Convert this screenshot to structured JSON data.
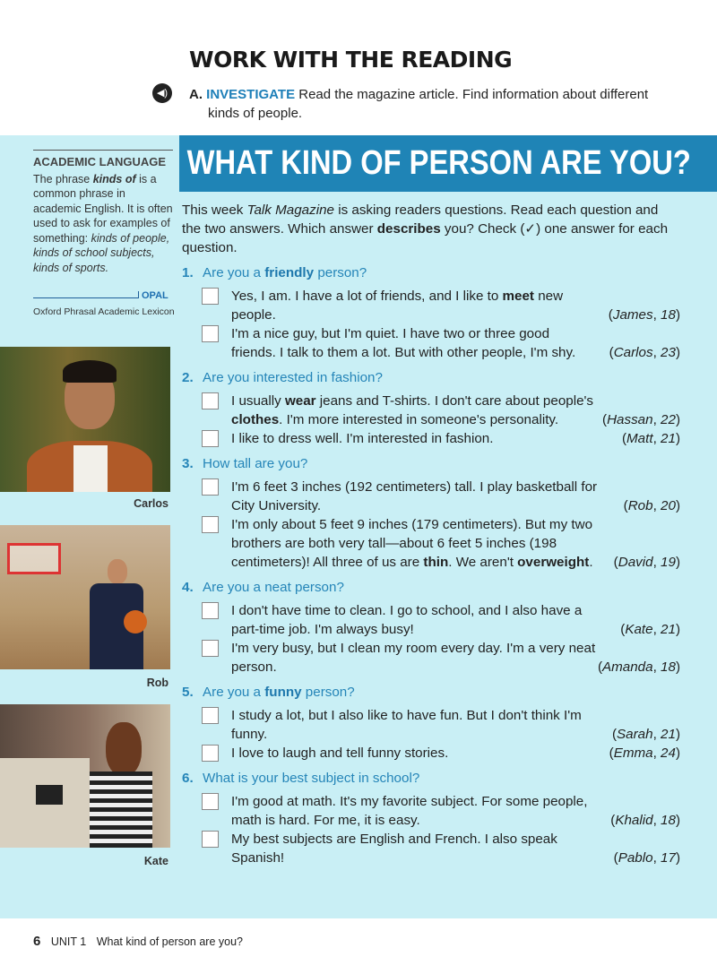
{
  "header": {
    "title": "WORK WITH THE READING",
    "audio_icon": "speaker-icon",
    "task_letter": "A.",
    "task_label": "INVESTIGATE",
    "task_text": "Read the magazine article. Find information about different",
    "task_text2": "kinds of people."
  },
  "sidebar": {
    "heading": "ACADEMIC LANGUAGE",
    "body": [
      {
        "t": "The phrase "
      },
      {
        "t": "kinds of",
        "i": true,
        "b": true
      },
      {
        "t": " is a common phrase in academic English. It is often used to ask for examples of something: "
      },
      {
        "t": "kinds of people, kinds of school subjects, kinds of sports.",
        "i": true
      }
    ],
    "opal_tag": "OPAL",
    "opal_full": "Oxford Phrasal Academic Lexicon",
    "photos": [
      {
        "caption": "Carlos"
      },
      {
        "caption": "Rob"
      },
      {
        "caption": "Kate"
      }
    ]
  },
  "article": {
    "title": "WHAT KIND OF PERSON ARE YOU?",
    "intro": [
      {
        "t": "This week "
      },
      {
        "t": "Talk Magazine",
        "i": true
      },
      {
        "t": " is asking readers questions. Read each question and the two answers. Which answer "
      },
      {
        "t": "describes",
        "b": true
      },
      {
        "t": " you? Check (✓) one answer for each question."
      }
    ],
    "questions": [
      {
        "num": "1.",
        "text": [
          {
            "t": "Are you a "
          },
          {
            "t": "friendly",
            "b": true
          },
          {
            "t": " person?"
          }
        ],
        "answers": [
          {
            "text": [
              {
                "t": "Yes, I am. I have a lot of friends, and I like to "
              },
              {
                "t": "meet",
                "b": true
              },
              {
                "t": " new people."
              }
            ],
            "name": "James",
            "age": "18"
          },
          {
            "text": [
              {
                "t": "I'm a nice guy, but I'm quiet. I have two or three good friends. I talk to them a lot. But with other people, I'm shy."
              }
            ],
            "name": "Carlos",
            "age": "23"
          }
        ]
      },
      {
        "num": "2.",
        "text": [
          {
            "t": "Are you interested in fashion?"
          }
        ],
        "answers": [
          {
            "text": [
              {
                "t": "I usually "
              },
              {
                "t": "wear",
                "b": true
              },
              {
                "t": " jeans and T-shirts. I don't care about people's "
              },
              {
                "t": "clothes",
                "b": true
              },
              {
                "t": ". I'm more interested in someone's personality."
              }
            ],
            "name": "Hassan",
            "age": "22"
          },
          {
            "text": [
              {
                "t": "I like to dress well. I'm interested in fashion."
              }
            ],
            "name": "Matt",
            "age": "21"
          }
        ]
      },
      {
        "num": "3.",
        "text": [
          {
            "t": "How tall are you?"
          }
        ],
        "answers": [
          {
            "text": [
              {
                "t": "I'm 6 feet 3 inches (192 centimeters) tall. I play basketball for City University."
              }
            ],
            "name": "Rob",
            "age": "20"
          },
          {
            "text": [
              {
                "t": "I'm only about 5 feet 9 inches (179 centimeters). But my two brothers are both very tall—about 6 feet 5 inches (198 centimeters)! All three of us are "
              },
              {
                "t": "thin",
                "b": true
              },
              {
                "t": ". We aren't "
              },
              {
                "t": "overweight",
                "b": true
              },
              {
                "t": "."
              }
            ],
            "name": "David",
            "age": "19"
          }
        ]
      },
      {
        "num": "4.",
        "text": [
          {
            "t": "Are you a neat person?"
          }
        ],
        "answers": [
          {
            "text": [
              {
                "t": "I don't have time to clean. I go to school, and I also have a part-time job. I'm always busy!"
              }
            ],
            "name": "Kate",
            "age": "21"
          },
          {
            "text": [
              {
                "t": "I'm very busy, but I clean my room every day. I'm a very neat person."
              }
            ],
            "name": "Amanda",
            "age": "18"
          }
        ]
      },
      {
        "num": "5.",
        "text": [
          {
            "t": "Are you a "
          },
          {
            "t": "funny",
            "b": true
          },
          {
            "t": " person?"
          }
        ],
        "answers": [
          {
            "text": [
              {
                "t": "I study a lot, but I also like to have fun. But I don't think I'm funny."
              }
            ],
            "name": "Sarah",
            "age": "21"
          },
          {
            "text": [
              {
                "t": "I love to laugh and tell funny stories."
              }
            ],
            "name": "Emma",
            "age": "24"
          }
        ]
      },
      {
        "num": "6.",
        "text": [
          {
            "t": "What is your best subject in school?"
          }
        ],
        "answers": [
          {
            "text": [
              {
                "t": "I'm good at math. It's my favorite subject. For some people, math is hard. For me, it is easy."
              }
            ],
            "name": "Khalid",
            "age": "18"
          },
          {
            "text": [
              {
                "t": "My best subjects are English and French. I also speak Spanish!"
              }
            ],
            "name": "Pablo",
            "age": "17"
          }
        ]
      }
    ]
  },
  "footer": {
    "page": "6",
    "unit": "UNIT 1",
    "title": "What kind of person are you?"
  },
  "colors": {
    "banner": "#1f84b6",
    "panel": "#c9eff5",
    "accent": "#2585b8"
  }
}
